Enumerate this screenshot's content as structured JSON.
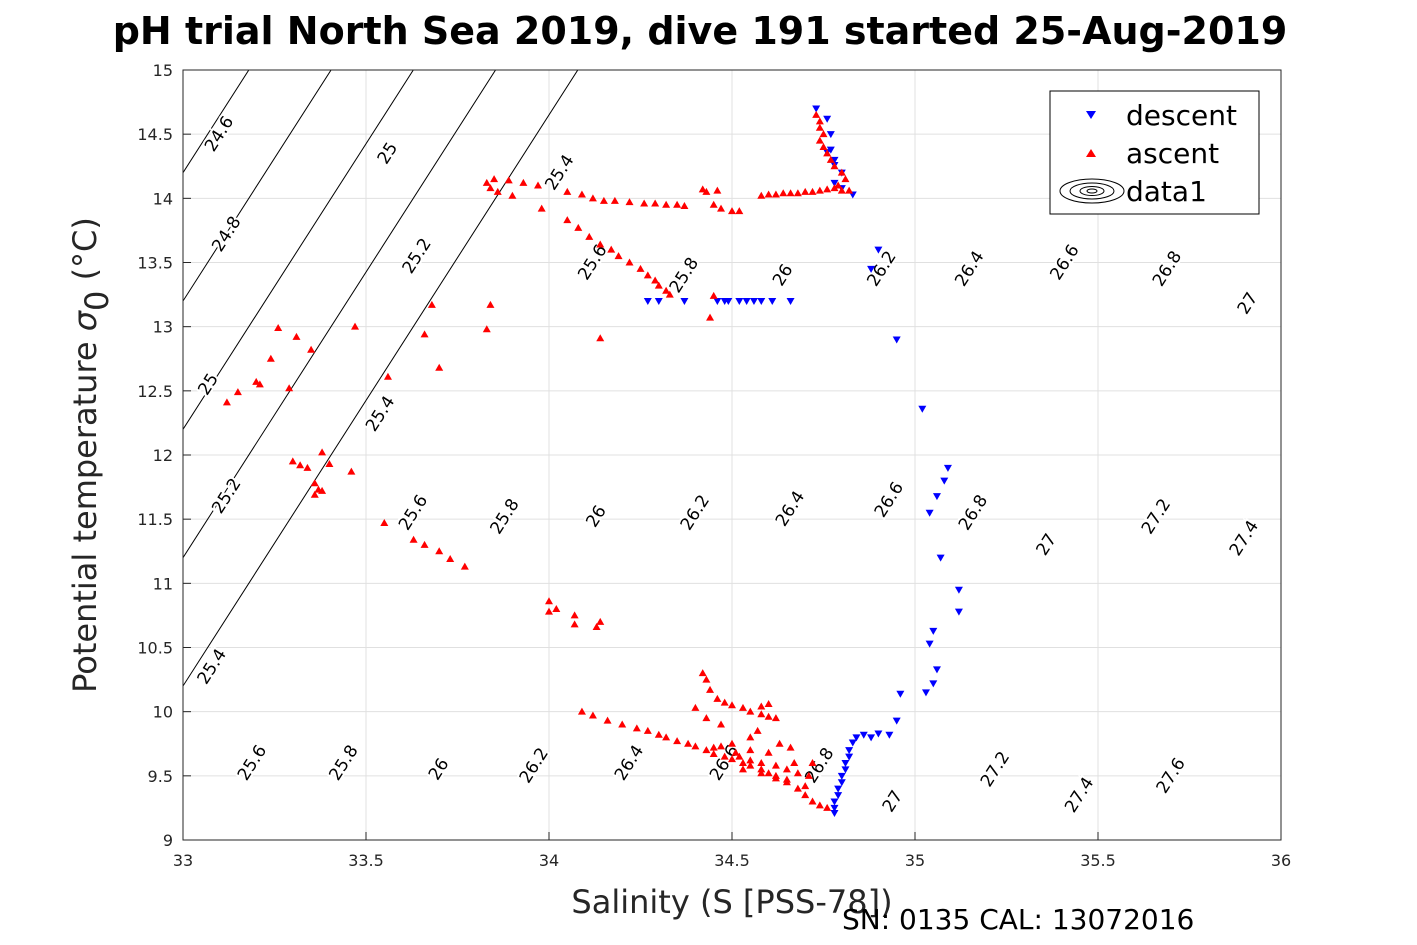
{
  "chart_data": {
    "type": "scatter",
    "title": "pH trial North Sea 2019, dive 191 started 25-Aug-2019",
    "xlabel": "Salinity (S [PSS-78])",
    "ylabel": "Potential temperature σ 0 (°C)",
    "ylabel_main": "Potential temperature ",
    "ylabel_sigma": "σ",
    "ylabel_sub": "0",
    "ylabel_unit": " (°C)",
    "xlim": [
      33,
      36
    ],
    "ylim": [
      9,
      15
    ],
    "xticks": [
      "33",
      "33.5",
      "34",
      "34.5",
      "35",
      "35.5",
      "36"
    ],
    "yticks": [
      "9",
      "9.5",
      "10",
      "10.5",
      "11",
      "11.5",
      "12",
      "12.5",
      "13",
      "13.5",
      "14",
      "14.5",
      "15"
    ],
    "grid": true,
    "legend_position": "top-right",
    "legend": [
      "descent",
      "ascent",
      "data1"
    ],
    "footer": "SN: 0135  CAL: 13072016",
    "colors": {
      "descent": "#0000ff",
      "ascent": "#ff0000",
      "contour": "#000000",
      "grid": "#e0e0e0"
    },
    "contours": {
      "levels": [
        24.6,
        24.8,
        25,
        25.2,
        25.4,
        25.6,
        25.8,
        26,
        26.2,
        26.4,
        26.6,
        26.8,
        27,
        27.2,
        27.4,
        27.6
      ],
      "labels": [
        {
          "text": "24.6",
          "x": 33.1,
          "y": 14.5
        },
        {
          "text": "24.8",
          "x": 33.12,
          "y": 13.72
        },
        {
          "text": "25",
          "x": 33.56,
          "y": 14.35
        },
        {
          "text": "25",
          "x": 33.07,
          "y": 12.55
        },
        {
          "text": "25.2",
          "x": 33.64,
          "y": 13.55
        },
        {
          "text": "25.2",
          "x": 33.12,
          "y": 11.68
        },
        {
          "text": "25.4",
          "x": 34.03,
          "y": 14.2
        },
        {
          "text": "25.4",
          "x": 33.54,
          "y": 12.32
        },
        {
          "text": "25.4",
          "x": 33.08,
          "y": 10.35
        },
        {
          "text": "25.6",
          "x": 34.12,
          "y": 13.5
        },
        {
          "text": "25.6",
          "x": 33.63,
          "y": 11.55
        },
        {
          "text": "25.6",
          "x": 33.19,
          "y": 9.6
        },
        {
          "text": "25.8",
          "x": 34.37,
          "y": 13.4
        },
        {
          "text": "25.8",
          "x": 33.88,
          "y": 11.52
        },
        {
          "text": "25.8",
          "x": 33.44,
          "y": 9.6
        },
        {
          "text": "26",
          "x": 34.64,
          "y": 13.4
        },
        {
          "text": "26",
          "x": 34.13,
          "y": 11.52
        },
        {
          "text": "26",
          "x": 33.7,
          "y": 9.55
        },
        {
          "text": "26.2",
          "x": 34.91,
          "y": 13.45
        },
        {
          "text": "26.2",
          "x": 34.4,
          "y": 11.55
        },
        {
          "text": "26.2",
          "x": 33.96,
          "y": 9.58
        },
        {
          "text": "26.4",
          "x": 35.15,
          "y": 13.45
        },
        {
          "text": "26.4",
          "x": 34.66,
          "y": 11.58
        },
        {
          "text": "26.4",
          "x": 34.22,
          "y": 9.6
        },
        {
          "text": "26.6",
          "x": 35.41,
          "y": 13.5
        },
        {
          "text": "26.6",
          "x": 34.93,
          "y": 11.65
        },
        {
          "text": "26.6",
          "x": 34.48,
          "y": 9.6
        },
        {
          "text": "26.8",
          "x": 35.69,
          "y": 13.45
        },
        {
          "text": "26.8",
          "x": 35.16,
          "y": 11.55
        },
        {
          "text": "26.8",
          "x": 34.74,
          "y": 9.58
        },
        {
          "text": "27",
          "x": 35.91,
          "y": 13.18
        },
        {
          "text": "27",
          "x": 35.36,
          "y": 11.3
        },
        {
          "text": "27",
          "x": 34.94,
          "y": 9.3
        },
        {
          "text": "27.2",
          "x": 35.66,
          "y": 11.52
        },
        {
          "text": "27.2",
          "x": 35.22,
          "y": 9.55
        },
        {
          "text": "27.4",
          "x": 35.9,
          "y": 11.35
        },
        {
          "text": "27.4",
          "x": 35.45,
          "y": 9.35
        },
        {
          "text": "27.6",
          "x": 35.7,
          "y": 9.5
        }
      ]
    },
    "series": [
      {
        "name": "descent",
        "marker": "triangle-down",
        "points": [
          [
            34.73,
            14.7
          ],
          [
            34.76,
            14.62
          ],
          [
            34.77,
            14.5
          ],
          [
            34.77,
            14.38
          ],
          [
            34.78,
            14.3
          ],
          [
            34.8,
            14.2
          ],
          [
            34.78,
            14.12
          ],
          [
            34.8,
            14.08
          ],
          [
            34.83,
            14.03
          ],
          [
            34.76,
            14.36
          ],
          [
            34.78,
            14.26
          ],
          [
            34.9,
            13.6
          ],
          [
            34.88,
            13.45
          ],
          [
            34.95,
            12.9
          ],
          [
            35.02,
            12.36
          ],
          [
            35.09,
            11.9
          ],
          [
            35.08,
            11.8
          ],
          [
            35.06,
            11.68
          ],
          [
            35.04,
            11.55
          ],
          [
            35.07,
            11.2
          ],
          [
            35.12,
            10.95
          ],
          [
            35.12,
            10.78
          ],
          [
            35.05,
            10.63
          ],
          [
            35.04,
            10.53
          ],
          [
            35.06,
            10.33
          ],
          [
            35.05,
            10.22
          ],
          [
            35.03,
            10.15
          ],
          [
            34.96,
            10.14
          ],
          [
            34.95,
            9.93
          ],
          [
            34.93,
            9.82
          ],
          [
            34.9,
            9.83
          ],
          [
            34.88,
            9.8
          ],
          [
            34.86,
            9.82
          ],
          [
            34.84,
            9.8
          ],
          [
            34.83,
            9.76
          ],
          [
            34.82,
            9.7
          ],
          [
            34.82,
            9.65
          ],
          [
            34.81,
            9.6
          ],
          [
            34.81,
            9.55
          ],
          [
            34.8,
            9.5
          ],
          [
            34.8,
            9.45
          ],
          [
            34.79,
            9.4
          ],
          [
            34.79,
            9.35
          ],
          [
            34.78,
            9.3
          ],
          [
            34.78,
            9.25
          ],
          [
            34.78,
            9.21
          ],
          [
            34.27,
            13.2
          ],
          [
            34.3,
            13.2
          ],
          [
            34.37,
            13.2
          ],
          [
            34.46,
            13.2
          ],
          [
            34.49,
            13.2
          ],
          [
            34.52,
            13.2
          ],
          [
            34.54,
            13.2
          ],
          [
            34.56,
            13.2
          ],
          [
            34.58,
            13.2
          ],
          [
            34.61,
            13.2
          ],
          [
            34.66,
            13.2
          ],
          [
            34.48,
            13.2
          ]
        ]
      },
      {
        "name": "ascent",
        "marker": "triangle-up",
        "points": [
          [
            34.73,
            14.65
          ],
          [
            34.74,
            14.6
          ],
          [
            34.74,
            14.55
          ],
          [
            34.75,
            14.5
          ],
          [
            34.74,
            14.45
          ],
          [
            34.75,
            14.4
          ],
          [
            34.76,
            14.35
          ],
          [
            34.77,
            14.3
          ],
          [
            34.78,
            14.25
          ],
          [
            34.8,
            14.2
          ],
          [
            34.81,
            14.15
          ],
          [
            34.79,
            14.1
          ],
          [
            34.8,
            14.06
          ],
          [
            34.82,
            14.06
          ],
          [
            34.58,
            14.02
          ],
          [
            34.6,
            14.03
          ],
          [
            34.62,
            14.03
          ],
          [
            34.64,
            14.04
          ],
          [
            34.66,
            14.04
          ],
          [
            34.68,
            14.04
          ],
          [
            34.7,
            14.05
          ],
          [
            34.72,
            14.05
          ],
          [
            34.74,
            14.06
          ],
          [
            34.76,
            14.07
          ],
          [
            34.78,
            14.08
          ],
          [
            34.42,
            14.07
          ],
          [
            34.43,
            14.05
          ],
          [
            34.46,
            14.06
          ],
          [
            34.45,
            13.95
          ],
          [
            34.47,
            13.92
          ],
          [
            34.5,
            13.9
          ],
          [
            34.52,
            13.9
          ],
          [
            34.37,
            13.94
          ],
          [
            34.35,
            13.95
          ],
          [
            34.32,
            13.95
          ],
          [
            34.29,
            13.96
          ],
          [
            34.26,
            13.96
          ],
          [
            34.22,
            13.97
          ],
          [
            34.18,
            13.98
          ],
          [
            34.15,
            13.98
          ],
          [
            34.12,
            14.0
          ],
          [
            34.09,
            14.03
          ],
          [
            34.05,
            14.05
          ],
          [
            33.97,
            14.1
          ],
          [
            33.93,
            14.12
          ],
          [
            33.89,
            14.14
          ],
          [
            33.85,
            14.15
          ],
          [
            33.83,
            14.12
          ],
          [
            33.84,
            14.08
          ],
          [
            33.86,
            14.05
          ],
          [
            33.9,
            14.02
          ],
          [
            33.98,
            13.92
          ],
          [
            34.05,
            13.83
          ],
          [
            34.08,
            13.77
          ],
          [
            34.11,
            13.7
          ],
          [
            34.14,
            13.64
          ],
          [
            34.17,
            13.6
          ],
          [
            34.19,
            13.55
          ],
          [
            34.22,
            13.5
          ],
          [
            34.25,
            13.45
          ],
          [
            34.27,
            13.4
          ],
          [
            34.29,
            13.36
          ],
          [
            34.3,
            13.32
          ],
          [
            34.32,
            13.28
          ],
          [
            34.33,
            13.25
          ],
          [
            34.45,
            13.24
          ],
          [
            34.44,
            13.07
          ],
          [
            34.14,
            12.91
          ],
          [
            33.84,
            13.17
          ],
          [
            33.83,
            12.98
          ],
          [
            33.68,
            13.17
          ],
          [
            33.66,
            12.94
          ],
          [
            33.7,
            12.68
          ],
          [
            33.47,
            13.0
          ],
          [
            33.35,
            12.82
          ],
          [
            33.31,
            12.92
          ],
          [
            33.26,
            12.99
          ],
          [
            33.24,
            12.75
          ],
          [
            33.2,
            12.57
          ],
          [
            33.21,
            12.55
          ],
          [
            33.29,
            12.52
          ],
          [
            33.15,
            12.49
          ],
          [
            33.12,
            12.41
          ],
          [
            33.38,
            12.02
          ],
          [
            33.4,
            11.93
          ],
          [
            33.3,
            11.95
          ],
          [
            33.32,
            11.92
          ],
          [
            33.34,
            11.9
          ],
          [
            33.36,
            11.78
          ],
          [
            33.37,
            11.73
          ],
          [
            33.36,
            11.69
          ],
          [
            33.38,
            11.72
          ],
          [
            33.46,
            11.87
          ],
          [
            33.56,
            12.61
          ],
          [
            33.55,
            11.47
          ],
          [
            33.63,
            11.34
          ],
          [
            33.66,
            11.3
          ],
          [
            33.7,
            11.25
          ],
          [
            33.73,
            11.19
          ],
          [
            33.77,
            11.13
          ],
          [
            34.0,
            10.86
          ],
          [
            34.02,
            10.8
          ],
          [
            34.0,
            10.78
          ],
          [
            34.07,
            10.75
          ],
          [
            34.14,
            10.7
          ],
          [
            34.13,
            10.66
          ],
          [
            34.07,
            10.68
          ],
          [
            34.09,
            10.0
          ],
          [
            34.12,
            9.97
          ],
          [
            34.16,
            9.93
          ],
          [
            34.2,
            9.9
          ],
          [
            34.24,
            9.87
          ],
          [
            34.27,
            9.85
          ],
          [
            34.3,
            9.82
          ],
          [
            34.32,
            9.8
          ],
          [
            34.35,
            9.77
          ],
          [
            34.38,
            9.75
          ],
          [
            34.4,
            9.73
          ],
          [
            34.43,
            9.7
          ],
          [
            34.45,
            9.67
          ],
          [
            34.48,
            9.65
          ],
          [
            34.5,
            9.63
          ],
          [
            34.53,
            9.6
          ],
          [
            34.55,
            9.58
          ],
          [
            34.58,
            9.55
          ],
          [
            34.6,
            9.52
          ],
          [
            34.62,
            9.5
          ],
          [
            34.65,
            9.45
          ],
          [
            34.68,
            9.4
          ],
          [
            34.7,
            9.35
          ],
          [
            34.72,
            9.3
          ],
          [
            34.74,
            9.27
          ],
          [
            34.76,
            9.25
          ],
          [
            34.42,
            10.3
          ],
          [
            34.43,
            10.25
          ],
          [
            34.44,
            10.17
          ],
          [
            34.46,
            10.1
          ],
          [
            34.48,
            10.07
          ],
          [
            34.5,
            10.05
          ],
          [
            34.53,
            10.03
          ],
          [
            34.55,
            10.0
          ],
          [
            34.58,
            9.98
          ],
          [
            34.6,
            9.96
          ],
          [
            34.62,
            9.95
          ],
          [
            34.58,
            10.04
          ],
          [
            34.6,
            10.06
          ],
          [
            34.57,
            9.85
          ],
          [
            34.55,
            9.8
          ],
          [
            34.5,
            9.75
          ],
          [
            34.47,
            9.73
          ],
          [
            34.45,
            9.72
          ],
          [
            34.52,
            9.65
          ],
          [
            34.55,
            9.62
          ],
          [
            34.58,
            9.6
          ],
          [
            34.62,
            9.58
          ],
          [
            34.65,
            9.55
          ],
          [
            34.68,
            9.52
          ],
          [
            34.71,
            9.5
          ],
          [
            34.55,
            9.7
          ],
          [
            34.6,
            9.68
          ],
          [
            34.63,
            9.75
          ],
          [
            34.66,
            9.72
          ],
          [
            34.4,
            10.03
          ],
          [
            34.43,
            9.95
          ],
          [
            34.47,
            9.9
          ],
          [
            34.51,
            9.68
          ],
          [
            34.53,
            9.55
          ],
          [
            34.65,
            9.47
          ],
          [
            34.7,
            9.42
          ],
          [
            34.72,
            9.6
          ],
          [
            34.67,
            9.6
          ],
          [
            34.62,
            9.48
          ],
          [
            34.58,
            9.52
          ]
        ]
      }
    ]
  }
}
